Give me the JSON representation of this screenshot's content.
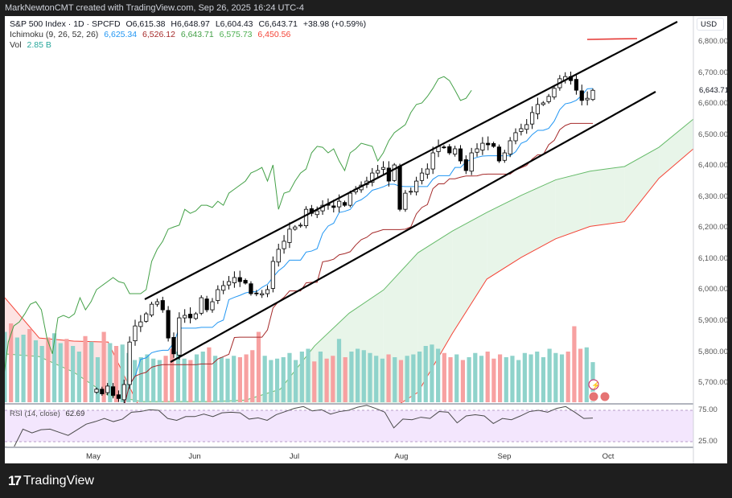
{
  "header": {
    "attribution": "MarkNewtonCMT created with TradingView.com, Sep 26, 2025 16:24 UTC-4"
  },
  "legend": {
    "symbol": "S&P 500 Index · 1D · SPCFD",
    "open": "O6,615.38",
    "high": "H6,648.97",
    "low": "L6,604.43",
    "close": "C6,643.71",
    "change": "+38.98 (+0.59%)",
    "ichimoku_label": "Ichimoku (9, 26, 52, 26)",
    "ichimoku_values": [
      "6,625.34",
      "6,526.12",
      "6,643.71",
      "6,575.73",
      "6,450.56"
    ],
    "vol_label": "Vol",
    "vol_value": "2.85 B",
    "rsi_label": "RSI (14, close)",
    "rsi_value": "62.69"
  },
  "price_axis": {
    "currency": "USD",
    "ticks": [
      "6,800.00",
      "6,700.00",
      "6,600.00",
      "6,500.00",
      "6,400.00",
      "6,300.00",
      "6,200.00",
      "6,100.00",
      "6,000.00",
      "5,900.00",
      "5,800.00",
      "5,700.00"
    ],
    "last_price": "6,643.71"
  },
  "rsi_axis": {
    "ticks": [
      "75.00",
      "25.00"
    ]
  },
  "time_axis": {
    "months": [
      "May",
      "Jun",
      "Jul",
      "Aug",
      "Sep",
      "Oct"
    ]
  },
  "footer": {
    "brand": "TradingView"
  },
  "colors": {
    "up": "#ffffff",
    "down": "#000000",
    "tenkan": "#2196f3",
    "kijun": "#a52a2a",
    "chikou": "#43a047",
    "span_a": "#66bb6a",
    "span_b": "#f44336",
    "vol_up": "#8fd3cb",
    "vol_down": "#f7a1a1",
    "rsi": "#4a4a4a",
    "rsi_band": "#f3e6fd",
    "channel": "#000000",
    "target_line": "#e53935"
  },
  "chart_data": {
    "type": "candlestick",
    "ylim": [
      5650,
      6850
    ],
    "closes": [
      5680,
      5665,
      5690,
      5660,
      5650,
      5695,
      5832,
      5884,
      5897,
      5923,
      5954,
      5962,
      5936,
      5845,
      5794,
      5910,
      5918,
      5910,
      5923,
      5975,
      5936,
      5962,
      6001,
      6014,
      6027,
      6040,
      6027,
      6022,
      5988,
      5988,
      5988,
      6001,
      6092,
      6131,
      6157,
      6196,
      6203,
      6209,
      6260,
      6247,
      6255,
      6273,
      6273,
      6266,
      6286,
      6273,
      6312,
      6325,
      6338,
      6351,
      6377,
      6385,
      6395,
      6351,
      6403,
      6260,
      6312,
      6318,
      6351,
      6377,
      6390,
      6442,
      6463,
      6460,
      6442,
      6455,
      6416,
      6385,
      6442,
      6455,
      6473,
      6468,
      6463,
      6416,
      6442,
      6481,
      6507,
      6520,
      6533,
      6572,
      6598,
      6603,
      6624,
      6650,
      6681,
      6688,
      6675,
      6644,
      6611,
      6618,
      6643.71
    ],
    "span_a": [
      5794,
      5785,
      5735,
      5660,
      5640,
      5640,
      5640,
      5645,
      5680,
      5820,
      5925,
      6000,
      6120,
      6190,
      6250,
      6305,
      6355,
      6383,
      6398,
      6460,
      6551
    ],
    "span_b": [
      5975,
      5845,
      5835,
      5832,
      5600,
      5600,
      5600,
      5600,
      5600,
      5600,
      5600,
      5600,
      5670,
      5860,
      6035,
      6105,
      6165,
      6205,
      6220,
      6360,
      6455
    ],
    "volume_b": [
      5.0,
      5.6,
      4.6,
      4.8,
      5.2,
      4.4,
      4.0,
      4.6,
      4.9,
      4.2,
      4.5,
      4.0,
      3.6,
      4.7,
      4.3,
      3.2,
      5.0,
      4.2,
      4.0,
      4.1,
      3.5,
      3.0,
      3.2,
      3.4,
      3.1,
      3.0,
      3.3,
      3.8,
      3.6,
      3.1,
      3.0,
      3.4,
      3.6,
      3.9,
      3.3,
      3.2,
      3.1,
      3.3,
      3.2,
      3.4,
      3.7,
      5.0,
      3.3,
      3.0,
      3.1,
      3.2,
      3.5,
      3.0,
      3.6,
      3.8,
      2.9,
      3.6,
      3.1,
      3.3,
      4.5,
      3.2,
      3.6,
      3.8,
      3.7,
      3.5,
      3.3,
      3.1,
      3.4,
      3.2,
      3.0,
      3.3,
      3.4,
      3.6,
      4.0,
      4.1,
      3.8,
      3.5,
      3.2,
      3.4,
      3.0,
      3.2,
      3.5,
      3.3,
      3.6,
      3.1,
      3.4,
      3.2,
      3.3,
      3.0,
      3.5,
      3.4,
      3.6,
      3.2,
      3.8,
      3.5,
      3.4,
      3.6,
      5.4,
      3.8,
      3.9,
      2.85
    ],
    "rsi": [
      17,
      16,
      45,
      39,
      44,
      45,
      40,
      35,
      44,
      53,
      57,
      62,
      57,
      61,
      72,
      73,
      76,
      75,
      62,
      59,
      65,
      65,
      69,
      65,
      71,
      72,
      71,
      61,
      63,
      59,
      68,
      73,
      78,
      81,
      74,
      76,
      69,
      73,
      75,
      80,
      83,
      78,
      72,
      47,
      61,
      60,
      64,
      62,
      73,
      72,
      55,
      66,
      68,
      66,
      54,
      62,
      60,
      66,
      73,
      75,
      72,
      78,
      81,
      72,
      62,
      62.69
    ],
    "rsi_levels": [
      75,
      25
    ]
  }
}
